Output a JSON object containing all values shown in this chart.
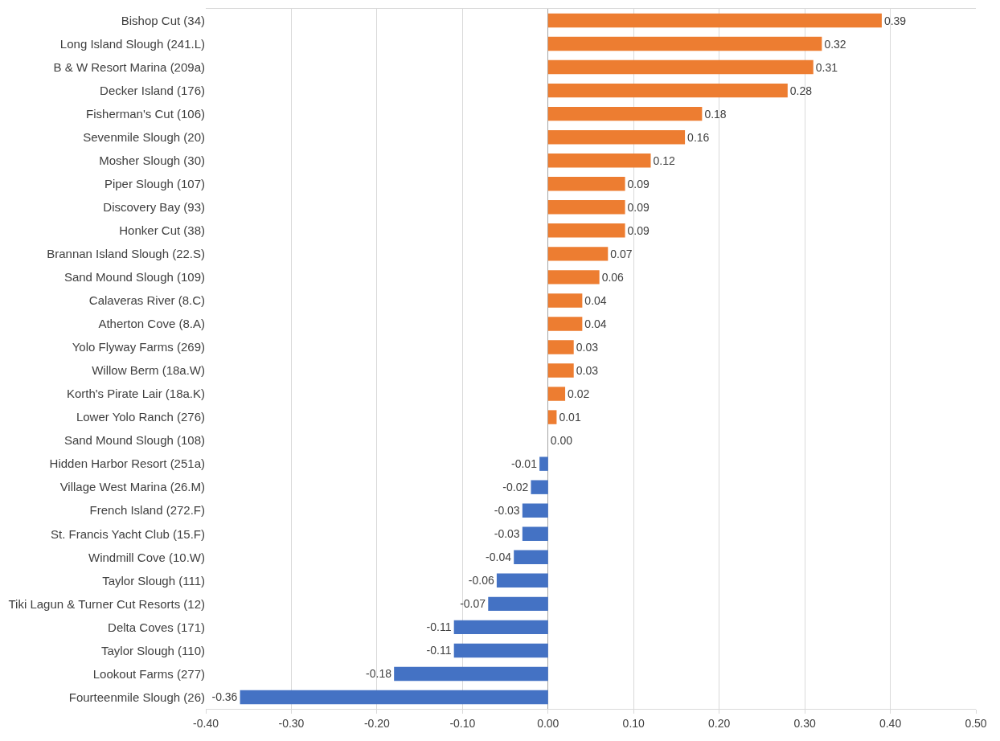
{
  "chart_data": {
    "type": "bar",
    "orientation": "horizontal",
    "categories": [
      "Bishop Cut (34)",
      "Long Island Slough (241.L)",
      "B & W Resort Marina (209a)",
      "Decker Island (176)",
      "Fisherman's Cut (106)",
      "Sevenmile Slough (20)",
      "Mosher Slough (30)",
      "Piper Slough (107)",
      "Discovery Bay (93)",
      "Honker Cut (38)",
      "Brannan Island Slough (22.S)",
      "Sand Mound Slough (109)",
      "Calaveras River (8.C)",
      "Atherton Cove (8.A)",
      "Yolo Flyway Farms (269)",
      "Willow Berm (18a.W)",
      "Korth's Pirate Lair (18a.K)",
      "Lower Yolo Ranch (276)",
      "Sand Mound Slough (108)",
      "Hidden Harbor Resort (251a)",
      "Village West Marina (26.M)",
      "French Island (272.F)",
      "St. Francis Yacht Club (15.F)",
      "Windmill Cove (10.W)",
      "Taylor Slough (111)",
      "Tiki Lagun & Turner Cut Resorts (12)",
      "Delta Coves (171)",
      "Taylor Slough (110)",
      "Lookout Farms (277)",
      "Fourteenmile Slough (26)"
    ],
    "values": [
      0.39,
      0.32,
      0.31,
      0.28,
      0.18,
      0.16,
      0.12,
      0.09,
      0.09,
      0.09,
      0.07,
      0.06,
      0.04,
      0.04,
      0.03,
      0.03,
      0.02,
      0.01,
      0.0,
      -0.01,
      -0.02,
      -0.03,
      -0.03,
      -0.04,
      -0.06,
      -0.07,
      -0.11,
      -0.11,
      -0.18,
      -0.36
    ],
    "value_labels": [
      "0.39",
      "0.32",
      "0.31",
      "0.28",
      "0.18",
      "0.16",
      "0.12",
      "0.09",
      "0.09",
      "0.09",
      "0.07",
      "0.06",
      "0.04",
      "0.04",
      "0.03",
      "0.03",
      "0.02",
      "0.01",
      "0.00",
      "-0.01",
      "-0.02",
      "-0.03",
      "-0.03",
      "-0.04",
      "-0.06",
      "-0.07",
      "-0.11",
      "-0.11",
      "-0.18",
      "-0.36"
    ],
    "colors": [
      "#ed7d31",
      "#ed7d31",
      "#ed7d31",
      "#ed7d31",
      "#ed7d31",
      "#ed7d31",
      "#ed7d31",
      "#ed7d31",
      "#ed7d31",
      "#ed7d31",
      "#ed7d31",
      "#ed7d31",
      "#ed7d31",
      "#ed7d31",
      "#ed7d31",
      "#ed7d31",
      "#ed7d31",
      "#ed7d31",
      "#ed7d31",
      "#4472c4",
      "#4472c4",
      "#4472c4",
      "#4472c4",
      "#4472c4",
      "#4472c4",
      "#4472c4",
      "#4472c4",
      "#4472c4",
      "#4472c4",
      "#4472c4"
    ],
    "xlim": [
      -0.4,
      0.5
    ],
    "xticks": [
      {
        "value": -0.4,
        "label": "-0.40"
      },
      {
        "value": -0.3,
        "label": "-0.30"
      },
      {
        "value": -0.2,
        "label": "-0.20"
      },
      {
        "value": -0.1,
        "label": "-0.10"
      },
      {
        "value": 0,
        "label": "0.00"
      },
      {
        "value": 0.1,
        "label": "0.10"
      },
      {
        "value": 0.2,
        "label": "0.20"
      },
      {
        "value": 0.3,
        "label": "0.30"
      },
      {
        "value": 0.4,
        "label": "0.40"
      },
      {
        "value": 0.5,
        "label": "0.50"
      }
    ],
    "grid": "x"
  }
}
